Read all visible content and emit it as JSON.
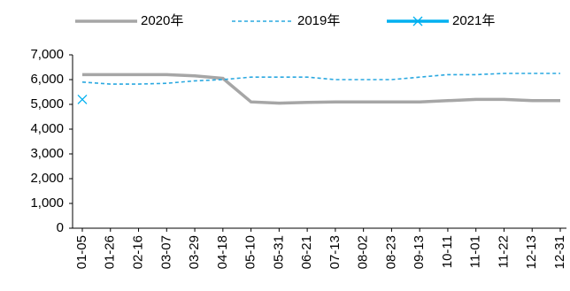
{
  "chart_data": {
    "type": "line",
    "categories": [
      "01-05",
      "01-26",
      "02-16",
      "03-07",
      "03-29",
      "04-18",
      "05-10",
      "05-31",
      "06-21",
      "07-13",
      "08-02",
      "08-23",
      "09-13",
      "10-11",
      "11-01",
      "11-22",
      "12-13",
      "12-31"
    ],
    "series": [
      {
        "name": "2020年",
        "color": "#a6a6a6",
        "style": "solid",
        "values": [
          6200,
          6200,
          6200,
          6200,
          6150,
          6050,
          5100,
          5050,
          5080,
          5100,
          5100,
          5100,
          5100,
          5150,
          5200,
          5200,
          5150,
          5150
        ]
      },
      {
        "name": "2019年",
        "color": "#2aa8e0",
        "style": "dashed",
        "values": [
          5900,
          5820,
          5820,
          5850,
          5950,
          6000,
          6100,
          6100,
          6100,
          6000,
          6000,
          6000,
          6100,
          6200,
          6200,
          6250,
          6250,
          6250
        ]
      },
      {
        "name": "2021年",
        "color": "#00b0f0",
        "style": "solid",
        "marker": "x",
        "values": [
          5200,
          null,
          null,
          null,
          null,
          null,
          null,
          null,
          null,
          null,
          null,
          null,
          null,
          null,
          null,
          null,
          null,
          null
        ]
      }
    ],
    "ylim": [
      0,
      7000
    ],
    "yticks": [
      0,
      {
        "value": 1000,
        "label": "1,000"
      },
      {
        "value": 2000,
        "label": "2,000"
      },
      {
        "value": 3000,
        "label": "3,000"
      },
      {
        "value": 4000,
        "label": "4,000"
      },
      {
        "value": 5000,
        "label": "5,000"
      },
      {
        "value": 6000,
        "label": "6,000"
      },
      {
        "value": 7000,
        "label": "7,000"
      }
    ]
  }
}
